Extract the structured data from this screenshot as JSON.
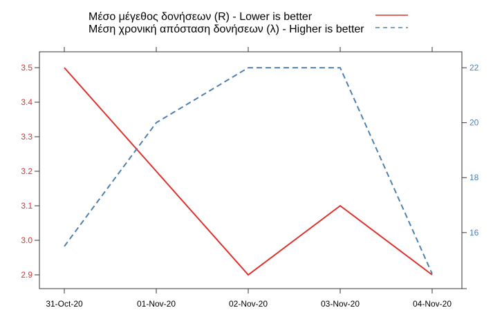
{
  "chart_data": {
    "type": "line",
    "title": "",
    "categories": [
      "31-Oct-20",
      "01-Nov-20",
      "02-Nov-20",
      "03-Nov-20",
      "04-Nov-20"
    ],
    "series": [
      {
        "name": "Μέσο μέγεθος δονήσεων (R) - Lower is better",
        "axis": "left",
        "style": "solid",
        "color": "#e0302c",
        "values": [
          3.5,
          3.2,
          2.9,
          3.1,
          2.9
        ]
      },
      {
        "name": "Μέση χρονική απόσταση δονήσεων (λ) - Higher is better",
        "axis": "right",
        "style": "dashed",
        "color": "#4f7fb0",
        "values": [
          15.5,
          20,
          22,
          22,
          14.5
        ]
      }
    ],
    "left_axis": {
      "ylim": [
        2.86,
        3.546
      ],
      "ticks": [
        2.9,
        3.0,
        3.1,
        3.2,
        3.3,
        3.4,
        3.5
      ],
      "tick_labels": [
        "2.9",
        "3.0",
        "3.1",
        "3.2",
        "3.3",
        "3.4",
        "3.5"
      ],
      "color": "#e0302c"
    },
    "right_axis": {
      "ylim": [
        13.96,
        22.58
      ],
      "ticks": [
        16,
        18,
        20,
        22
      ],
      "tick_labels": [
        "16",
        "18",
        "20",
        "22"
      ],
      "color": "#4f7fb0"
    },
    "legend_placement": "top",
    "grid": false
  }
}
